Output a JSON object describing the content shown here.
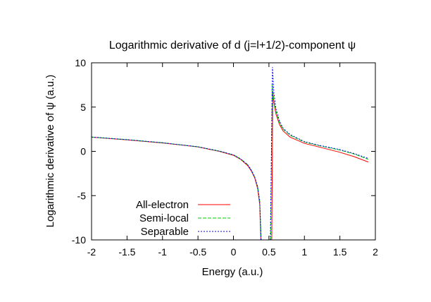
{
  "chart_data": {
    "type": "line",
    "title": "Logarithmic derivative of d (j=l+1/2)-component ψ",
    "xlabel": "Energy (a.u.)",
    "ylabel": "Logarithmic derivative of ψ (a.u.)",
    "xlim": [
      -2,
      2
    ],
    "ylim": [
      -10,
      10
    ],
    "xticks": [
      -2,
      -1.5,
      -1,
      -0.5,
      0,
      0.5,
      1,
      1.5,
      2
    ],
    "xtick_labels": [
      "-2",
      "-1.5",
      "-1",
      "-0.5",
      "0",
      "0.5",
      "1",
      "1.5",
      "2"
    ],
    "yticks": [
      -10,
      -5,
      0,
      5,
      10
    ],
    "ytick_labels": [
      "-10",
      "-5",
      "0",
      "5",
      "10"
    ],
    "grid": false,
    "legend_position": "bottom-left",
    "series": [
      {
        "name": "All-electron",
        "color": "#ff0000",
        "dash": "solid",
        "segments": [
          [
            [
              -2.0,
              1.6
            ],
            [
              -1.5,
              1.3
            ],
            [
              -1.0,
              0.95
            ],
            [
              -0.5,
              0.5
            ],
            [
              -0.2,
              0.0
            ],
            [
              0.0,
              -0.45
            ],
            [
              0.1,
              -0.9
            ],
            [
              0.2,
              -1.6
            ],
            [
              0.25,
              -2.2
            ],
            [
              0.3,
              -3.0
            ],
            [
              0.34,
              -4.2
            ],
            [
              0.37,
              -6.0
            ],
            [
              0.385,
              -10.0
            ]
          ],
          [
            [
              0.54,
              -10.0
            ],
            [
              0.555,
              6.8
            ],
            [
              0.57,
              5.5
            ],
            [
              0.6,
              4.2
            ],
            [
              0.65,
              3.0
            ],
            [
              0.7,
              2.3
            ],
            [
              0.8,
              1.6
            ],
            [
              1.0,
              0.9
            ],
            [
              1.2,
              0.5
            ],
            [
              1.5,
              -0.1
            ],
            [
              1.7,
              -0.6
            ],
            [
              1.9,
              -1.2
            ]
          ]
        ]
      },
      {
        "name": "Semi-local",
        "color": "#00cc00",
        "dash": "dash",
        "segments": [
          [
            [
              -2.0,
              1.62
            ],
            [
              -1.5,
              1.32
            ],
            [
              -1.0,
              0.97
            ],
            [
              -0.5,
              0.52
            ],
            [
              -0.2,
              0.03
            ],
            [
              0.0,
              -0.4
            ],
            [
              0.1,
              -0.85
            ],
            [
              0.2,
              -1.5
            ],
            [
              0.25,
              -2.1
            ],
            [
              0.3,
              -2.9
            ],
            [
              0.34,
              -4.0
            ],
            [
              0.37,
              -5.6
            ],
            [
              0.39,
              -10.0
            ]
          ],
          [
            [
              0.525,
              -10.0
            ],
            [
              0.545,
              7.6
            ],
            [
              0.565,
              6.0
            ],
            [
              0.6,
              4.5
            ],
            [
              0.65,
              3.2
            ],
            [
              0.7,
              2.5
            ],
            [
              0.8,
              1.8
            ],
            [
              1.0,
              1.05
            ],
            [
              1.2,
              0.65
            ],
            [
              1.5,
              0.15
            ],
            [
              1.7,
              -0.3
            ],
            [
              1.9,
              -0.9
            ]
          ]
        ]
      },
      {
        "name": "Separable",
        "color": "#0000ff",
        "dash": "dot",
        "segments": [
          [
            [
              -2.0,
              1.62
            ],
            [
              -1.5,
              1.32
            ],
            [
              -1.0,
              0.97
            ],
            [
              -0.5,
              0.52
            ],
            [
              -0.2,
              0.03
            ],
            [
              0.0,
              -0.4
            ],
            [
              0.1,
              -0.85
            ],
            [
              0.2,
              -1.5
            ],
            [
              0.25,
              -2.1
            ],
            [
              0.3,
              -2.9
            ],
            [
              0.34,
              -4.0
            ],
            [
              0.37,
              -5.6
            ],
            [
              0.39,
              -10.0
            ]
          ],
          [
            [
              0.52,
              -10.0
            ],
            [
              0.55,
              9.5
            ],
            [
              0.57,
              6.6
            ],
            [
              0.6,
              4.8
            ],
            [
              0.65,
              3.4
            ],
            [
              0.7,
              2.6
            ],
            [
              0.8,
              1.9
            ],
            [
              1.0,
              1.1
            ],
            [
              1.2,
              0.7
            ],
            [
              1.5,
              0.2
            ],
            [
              1.7,
              -0.25
            ],
            [
              1.9,
              -0.8
            ]
          ]
        ]
      }
    ]
  }
}
